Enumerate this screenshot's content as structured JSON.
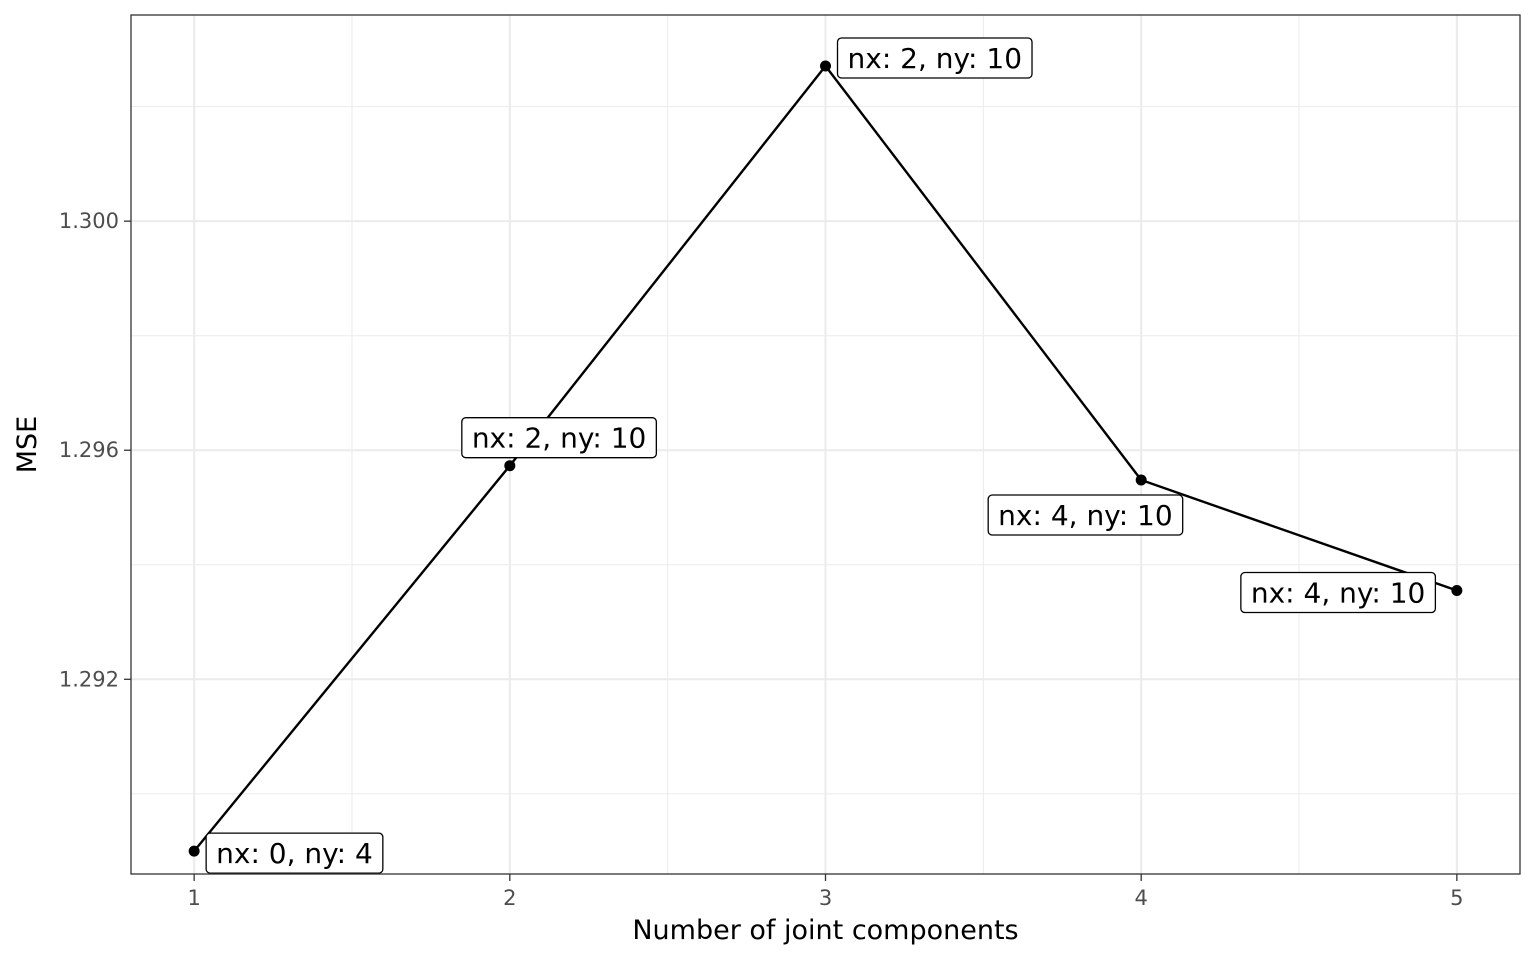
{
  "chart_data": {
    "type": "line",
    "title": "",
    "xlabel": "Number of joint components",
    "ylabel": "MSE",
    "xlim": [
      0.8,
      5.2
    ],
    "ylim": [
      1.2886,
      1.3036
    ],
    "grid": true,
    "x_ticks": [
      1,
      2,
      3,
      4,
      5
    ],
    "x_tick_labels": [
      "1",
      "2",
      "3",
      "4",
      "5"
    ],
    "y_ticks": [
      1.292,
      1.296,
      1.3
    ],
    "y_tick_labels": [
      "1.292",
      "1.296",
      "1.300"
    ],
    "x": [
      1,
      2,
      3,
      4,
      5
    ],
    "y": [
      1.289,
      1.29573,
      1.30271,
      1.29548,
      1.29355
    ],
    "point_labels": [
      "nx: 0, ny: 4",
      "nx: 2, ny: 10",
      "nx: 2, ny: 10",
      "nx: 4, ny: 10",
      "nx: 4, ny: 10"
    ],
    "line_color": "#000000",
    "grid_color": "#ebebeb"
  }
}
